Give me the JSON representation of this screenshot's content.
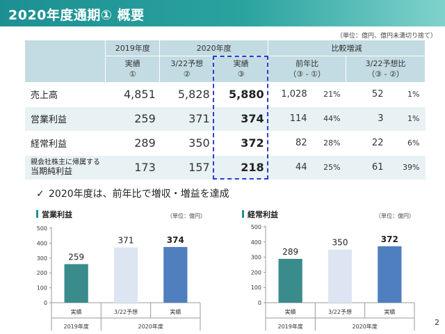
{
  "header": {
    "title": "2020年度通期① 概要"
  },
  "unit_note": "（単位：億円、億円未満切り捨て）",
  "table": {
    "head": {
      "fy2019": "2019年度",
      "fy2020": "2020年度",
      "compare": "比較増減",
      "actual19_l1": "実績",
      "actual19_l2": "①",
      "forecast_l1": "3/22予想",
      "forecast_l2": "②",
      "actual20_l1": "実績",
      "actual20_l2": "③",
      "yoy_l1": "前年比",
      "yoy_l2": "（③ - ①）",
      "vsf_l1": "3/22予想比",
      "vsf_l2": "（③ - ②）"
    },
    "rows": [
      {
        "label": "売上高",
        "a19": "4,851",
        "f20": "5,828",
        "a20": "5,880",
        "yoy": "1,028",
        "yoy_pct": "21%",
        "vsf": "52",
        "vsf_pct": "1%"
      },
      {
        "label": "営業利益",
        "a19": "259",
        "f20": "371",
        "a20": "374",
        "yoy": "114",
        "yoy_pct": "44%",
        "vsf": "3",
        "vsf_pct": "1%"
      },
      {
        "label": "経常利益",
        "a19": "289",
        "f20": "350",
        "a20": "372",
        "yoy": "82",
        "yoy_pct": "28%",
        "vsf": "22",
        "vsf_pct": "6%"
      },
      {
        "label_l1": "親会社株主に帰属する",
        "label_l2": "当期純利益",
        "a19": "173",
        "f20": "157",
        "a20": "218",
        "yoy": "44",
        "yoy_pct": "25%",
        "vsf": "61",
        "vsf_pct": "39%"
      }
    ]
  },
  "conclusion": {
    "check": "✓",
    "text": "2020年度は、前年比で増収・増益を達成"
  },
  "colors": {
    "teal": "#3a8b8b",
    "light": "#dce5f1",
    "blue": "#4f7fbe",
    "header_bg": "#c3dbe2"
  },
  "chart_data": [
    {
      "type": "bar",
      "title": "営業利益",
      "unit": "（単位：億円）",
      "categories": [
        "実績",
        "3/22予想",
        "実績"
      ],
      "groups": [
        "2019年度",
        "2020年度"
      ],
      "values": [
        259,
        371,
        374
      ],
      "labels": [
        "259",
        "371",
        "374"
      ],
      "ylim": [
        0,
        500
      ],
      "yticks": [
        "0",
        "100",
        "200",
        "300",
        "400",
        "500"
      ],
      "grid": false
    },
    {
      "type": "bar",
      "title": "経常利益",
      "unit": "（単位：億円）",
      "categories": [
        "実績",
        "3/22予想",
        "実績"
      ],
      "groups": [
        "2019年度",
        "2020年度"
      ],
      "values": [
        289,
        350,
        372
      ],
      "labels": [
        "289",
        "350",
        "372"
      ],
      "ylim": [
        0,
        500
      ],
      "yticks": [
        "0",
        "100",
        "200",
        "300",
        "400",
        "500"
      ],
      "grid": false
    }
  ],
  "page_number": "2"
}
